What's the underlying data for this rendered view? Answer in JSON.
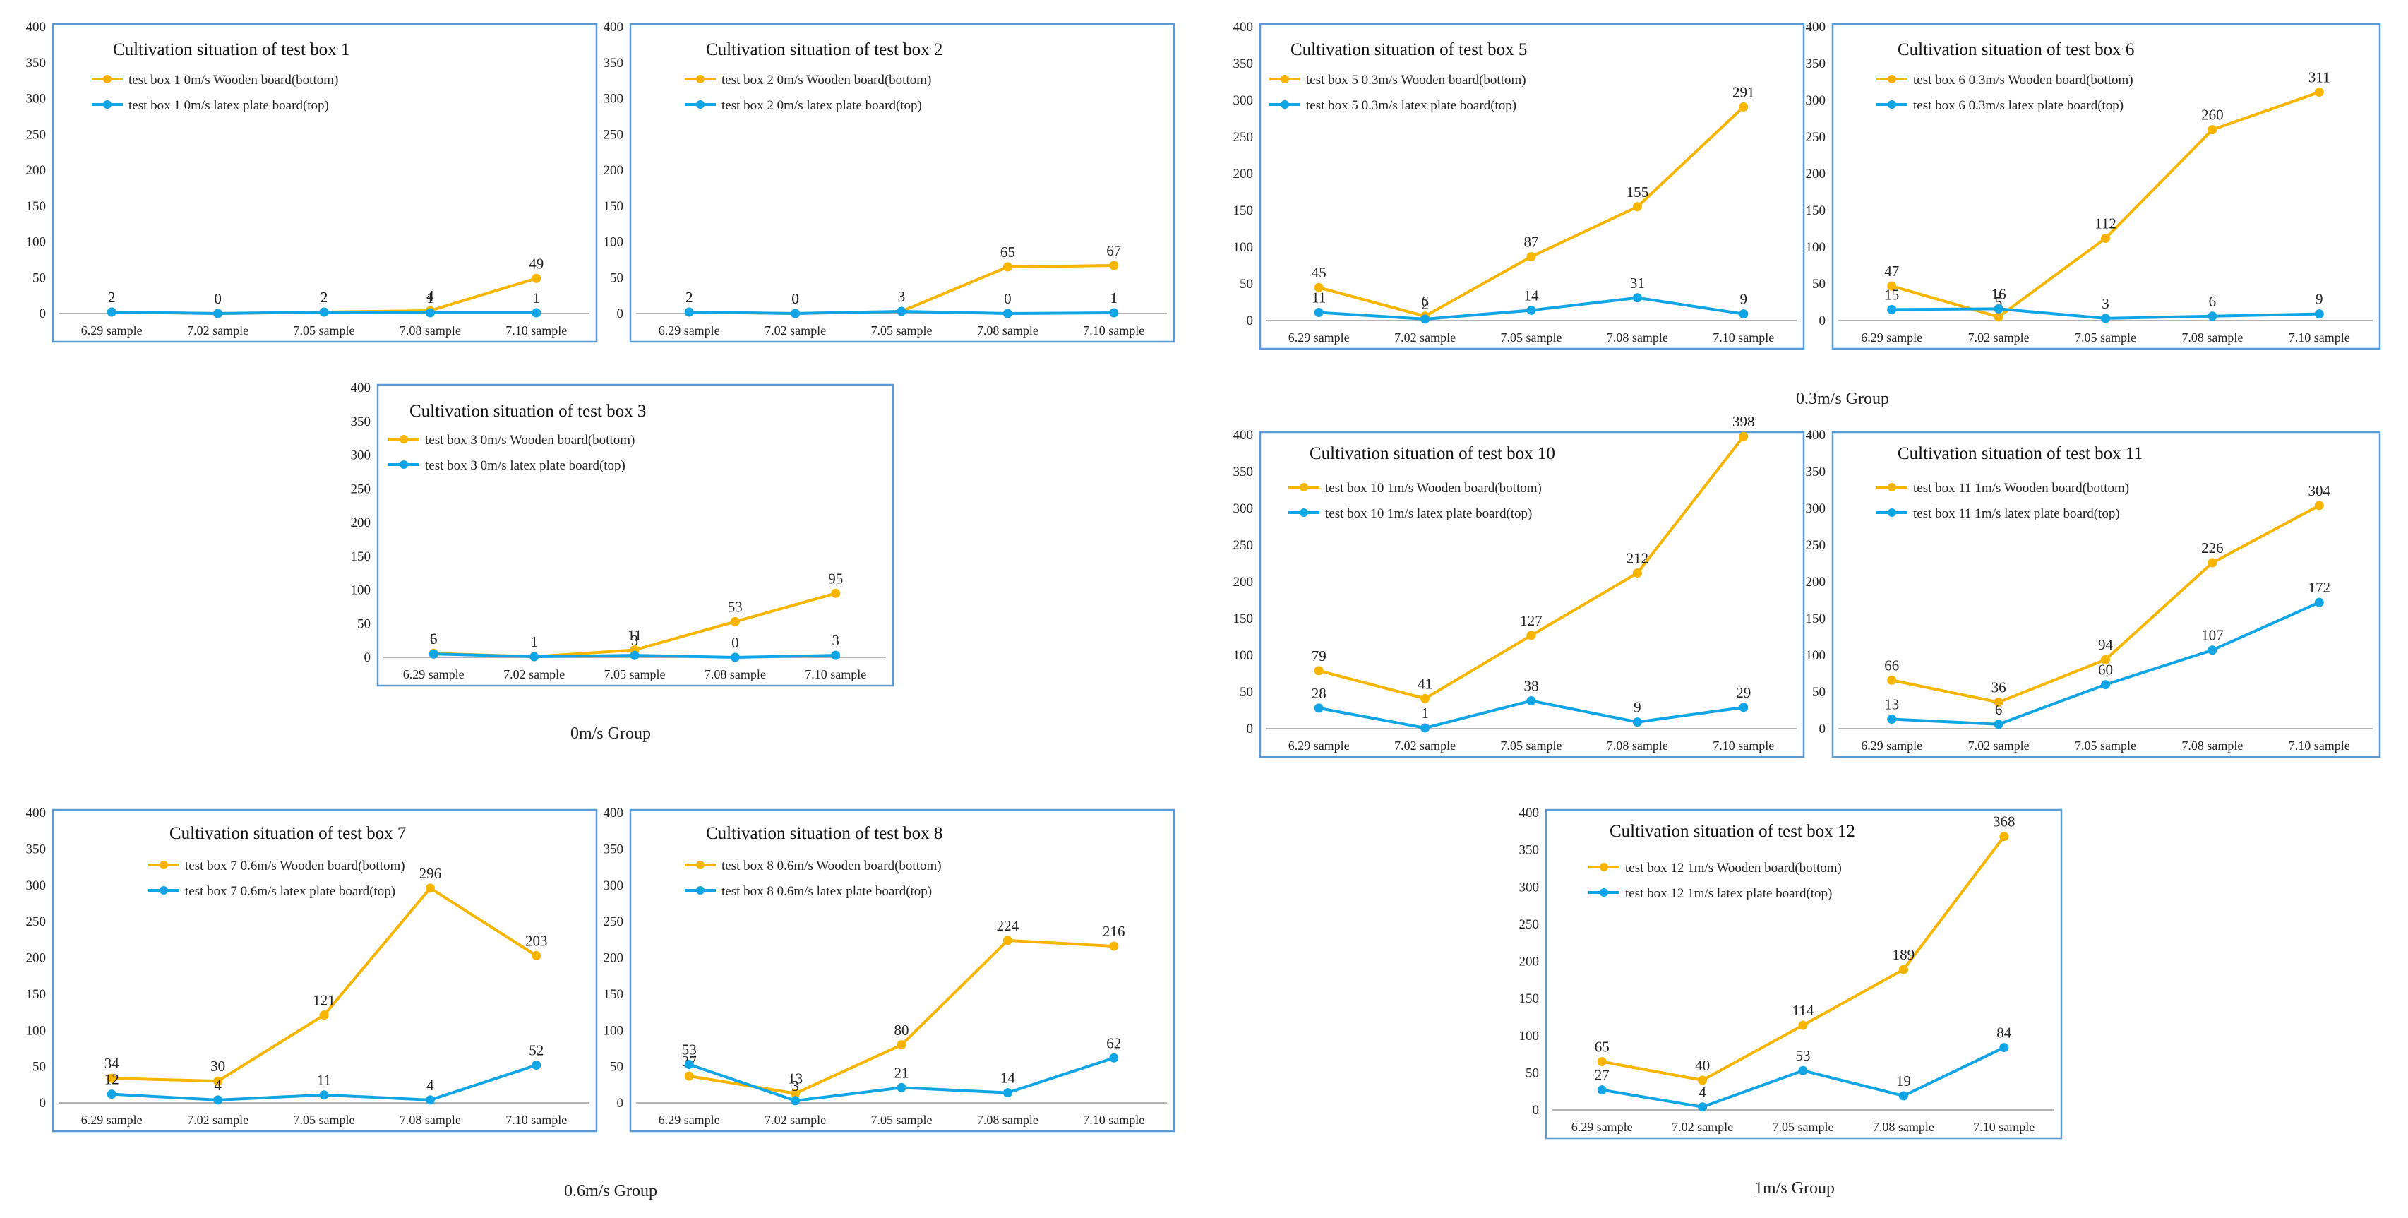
{
  "colors": {
    "wooden": "#f7b500",
    "latex": "#12a5e6",
    "frame": "#5b9bd5"
  },
  "group_labels": [
    "0m/s Group",
    "0.3m/s Group",
    "0.6m/s Group",
    "1m/s Group"
  ],
  "chart_data": [
    {
      "type": "line",
      "title": "Cultivation situation of test box 1",
      "categories": [
        "6.29 sample",
        "7.02 sample",
        "7.05 sample",
        "7.08 sample",
        "7.10 sample"
      ],
      "series": [
        {
          "name": "test box 1 0m/s Wooden board(bottom)",
          "values": [
            2,
            0,
            2,
            4,
            49
          ]
        },
        {
          "name": "test box 1 0m/s latex plate board(top)",
          "values": [
            2,
            0,
            2,
            1,
            1
          ]
        }
      ],
      "ylim": [
        0,
        400
      ],
      "yticks": [
        0,
        50,
        100,
        150,
        200,
        250,
        300,
        350,
        400
      ]
    },
    {
      "type": "line",
      "title": "Cultivation situation of test box 2",
      "categories": [
        "6.29 sample",
        "7.02 sample",
        "7.05 sample",
        "7.08 sample",
        "7.10 sample"
      ],
      "series": [
        {
          "name": "test box 2 0m/s Wooden board(bottom)",
          "values": [
            2,
            0,
            3,
            65,
            67
          ]
        },
        {
          "name": "test box 2 0m/s latex plate board(top)",
          "values": [
            2,
            0,
            3,
            0,
            1
          ]
        }
      ],
      "ylim": [
        0,
        400
      ],
      "yticks": [
        0,
        50,
        100,
        150,
        200,
        250,
        300,
        350,
        400
      ]
    },
    {
      "type": "line",
      "title": "Cultivation situation of test box 3",
      "categories": [
        "6.29 sample",
        "7.02 sample",
        "7.05 sample",
        "7.08 sample",
        "7.10 sample"
      ],
      "series": [
        {
          "name": "test box 3 0m/s Wooden board(bottom)",
          "values": [
            6,
            1,
            11,
            53,
            95
          ]
        },
        {
          "name": "test box 3 0m/s latex plate board(top)",
          "values": [
            5,
            1,
            3,
            0,
            3
          ]
        }
      ],
      "ylim": [
        0,
        400
      ],
      "yticks": [
        0,
        50,
        100,
        150,
        200,
        250,
        300,
        350,
        400
      ]
    },
    {
      "type": "line",
      "title": "Cultivation situation of test box 5",
      "categories": [
        "6.29 sample",
        "7.02 sample",
        "7.05 sample",
        "7.08 sample",
        "7.10 sample"
      ],
      "series": [
        {
          "name": "test box 5 0.3m/s Wooden board(bottom)",
          "values": [
            45,
            6,
            87,
            155,
            291
          ]
        },
        {
          "name": "test box 5 0.3m/s latex plate board(top)",
          "values": [
            11,
            2,
            14,
            31,
            9
          ]
        }
      ],
      "ylim": [
        0,
        400
      ],
      "yticks": [
        0,
        50,
        100,
        150,
        200,
        250,
        300,
        350,
        400
      ]
    },
    {
      "type": "line",
      "title": "Cultivation situation of test box 6",
      "categories": [
        "6.29 sample",
        "7.02 sample",
        "7.05 sample",
        "7.08 sample",
        "7.10 sample"
      ],
      "series": [
        {
          "name": "test box 6 0.3m/s Wooden board(bottom)",
          "values": [
            47,
            5,
            112,
            260,
            311
          ]
        },
        {
          "name": "test box 6 0.3m/s latex plate board(top)",
          "values": [
            15,
            16,
            3,
            6,
            9
          ]
        }
      ],
      "ylim": [
        0,
        400
      ],
      "yticks": [
        0,
        50,
        100,
        150,
        200,
        250,
        300,
        350,
        400
      ]
    },
    {
      "type": "line",
      "title": "Cultivation situation of test box 10",
      "categories": [
        "6.29 sample",
        "7.02 sample",
        "7.05 sample",
        "7.08 sample",
        "7.10 sample"
      ],
      "series": [
        {
          "name": "test box 10 1m/s Wooden board(bottom)",
          "values": [
            79,
            41,
            127,
            212,
            398
          ]
        },
        {
          "name": "test box 10 1m/s latex plate board(top)",
          "values": [
            28,
            1,
            38,
            9,
            29
          ]
        }
      ],
      "ylim": [
        0,
        400
      ],
      "yticks": [
        0,
        50,
        100,
        150,
        200,
        250,
        300,
        350,
        400
      ]
    },
    {
      "type": "line",
      "title": "Cultivation situation of test box 11",
      "categories": [
        "6.29 sample",
        "7.02 sample",
        "7.05 sample",
        "7.08 sample",
        "7.10 sample"
      ],
      "series": [
        {
          "name": "test box 11 1m/s Wooden board(bottom)",
          "values": [
            66,
            36,
            94,
            226,
            304
          ]
        },
        {
          "name": "test box 11 1m/s latex plate board(top)",
          "values": [
            13,
            6,
            60,
            107,
            172
          ]
        }
      ],
      "ylim": [
        0,
        400
      ],
      "yticks": [
        0,
        50,
        100,
        150,
        200,
        250,
        300,
        350,
        400
      ]
    },
    {
      "type": "line",
      "title": "Cultivation situation of test box 7",
      "categories": [
        "6.29 sample",
        "7.02 sample",
        "7.05 sample",
        "7.08 sample",
        "7.10 sample"
      ],
      "series": [
        {
          "name": "test box 7 0.6m/s Wooden board(bottom)",
          "values": [
            34,
            30,
            121,
            296,
            203
          ]
        },
        {
          "name": "test box 7 0.6m/s latex plate board(top)",
          "values": [
            12,
            4,
            11,
            4,
            52
          ]
        }
      ],
      "ylim": [
        0,
        400
      ],
      "yticks": [
        0,
        50,
        100,
        150,
        200,
        250,
        300,
        350,
        400
      ]
    },
    {
      "type": "line",
      "title": "Cultivation situation of test box 8",
      "categories": [
        "6.29 sample",
        "7.02 sample",
        "7.05 sample",
        "7.08 sample",
        "7.10 sample"
      ],
      "series": [
        {
          "name": "test box 8 0.6m/s Wooden board(bottom)",
          "values": [
            37,
            13,
            80,
            224,
            216
          ]
        },
        {
          "name": "test box 8 0.6m/s latex plate board(top)",
          "values": [
            53,
            3,
            21,
            14,
            62
          ]
        }
      ],
      "ylim": [
        0,
        400
      ],
      "yticks": [
        0,
        50,
        100,
        150,
        200,
        250,
        300,
        350,
        400
      ]
    },
    {
      "type": "line",
      "title": "Cultivation situation of test box 12",
      "categories": [
        "6.29 sample",
        "7.02 sample",
        "7.05 sample",
        "7.08 sample",
        "7.10 sample"
      ],
      "series": [
        {
          "name": "test box 12 1m/s Wooden board(bottom)",
          "values": [
            65,
            40,
            114,
            189,
            368
          ]
        },
        {
          "name": "test box 12 1m/s latex plate board(top)",
          "values": [
            27,
            4,
            53,
            19,
            84
          ]
        }
      ],
      "ylim": [
        0,
        400
      ],
      "yticks": [
        0,
        50,
        100,
        150,
        200,
        250,
        300,
        350,
        400
      ]
    }
  ]
}
